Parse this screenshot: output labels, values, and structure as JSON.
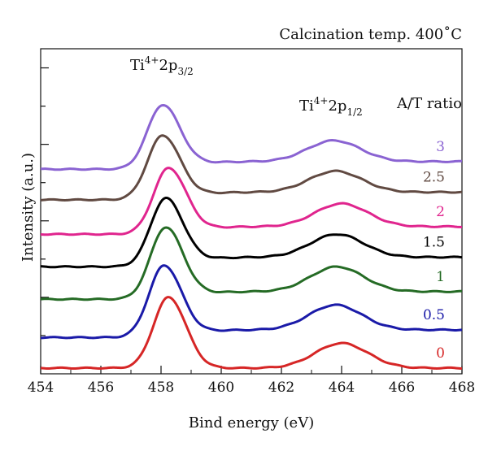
{
  "chart_data": {
    "type": "line",
    "title": "Calcination temp. 400˚C",
    "xlabel": "Bind energy (eV)",
    "ylabel": "Intensity (a.u.)",
    "xlim": [
      454,
      468
    ],
    "ylim": [
      0,
      8.5
    ],
    "x_ticks": [
      "454",
      "456",
      "458",
      "460",
      "462",
      "464",
      "466",
      "468"
    ],
    "grid": false,
    "legend_title": "A/T ratio",
    "peak_annotations": [
      {
        "ion": "Ti",
        "charge": "4+",
        "orbital": "2p",
        "sub": "3/2",
        "x": 458.1
      },
      {
        "ion": "Ti",
        "charge": "4+",
        "orbital": "2p",
        "sub": "1/2",
        "x": 463.8
      }
    ],
    "series": [
      {
        "name": "0",
        "color": "#d62626",
        "baseline": 0.15,
        "peak1_x": 458.25,
        "peak1_h": 1.85,
        "peak2_x": 464.0,
        "peak2_h": 0.65,
        "end_y": 0.15
      },
      {
        "name": "0.5",
        "color": "#1a1aa8",
        "baseline": 0.95,
        "peak1_x": 458.1,
        "peak1_h": 1.85,
        "peak2_x": 463.8,
        "peak2_h": 0.65,
        "end_y": 1.15
      },
      {
        "name": "1",
        "color": "#256b25",
        "baseline": 1.95,
        "peak1_x": 458.15,
        "peak1_h": 1.85,
        "peak2_x": 463.85,
        "peak2_h": 0.65,
        "end_y": 2.15
      },
      {
        "name": "1.5",
        "color": "#000000",
        "baseline": 2.8,
        "peak1_x": 458.15,
        "peak1_h": 1.75,
        "peak2_x": 463.85,
        "peak2_h": 0.6,
        "end_y": 3.05
      },
      {
        "name": "2",
        "color": "#e0258e",
        "baseline": 3.65,
        "peak1_x": 458.25,
        "peak1_h": 1.7,
        "peak2_x": 464.0,
        "peak2_h": 0.6,
        "end_y": 3.85
      },
      {
        "name": "2.5",
        "color": "#614a42",
        "baseline": 4.55,
        "peak1_x": 458.05,
        "peak1_h": 1.65,
        "peak2_x": 463.8,
        "peak2_h": 0.55,
        "end_y": 4.75
      },
      {
        "name": "3",
        "color": "#8a63d2",
        "baseline": 5.35,
        "peak1_x": 458.05,
        "peak1_h": 1.65,
        "peak2_x": 463.75,
        "peak2_h": 0.55,
        "end_y": 5.55
      }
    ]
  }
}
